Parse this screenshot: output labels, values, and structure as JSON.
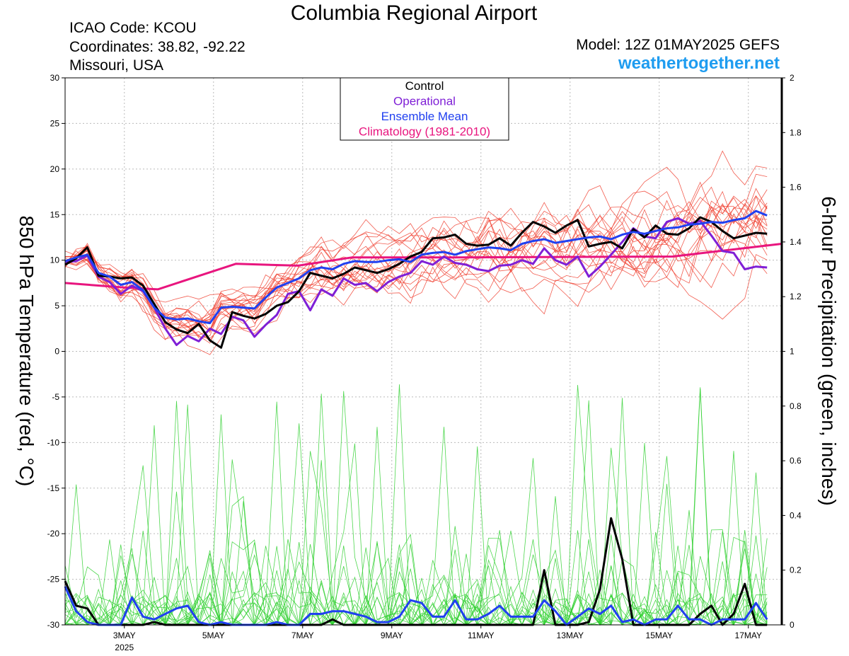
{
  "header": {
    "title": "Columbia Regional Airport",
    "icao": "ICAO Code: KCOU",
    "coordinates": "Coordinates: 38.82, -92.22",
    "region": "Missouri, USA",
    "model": "Model: 12Z 01MAY2025 GEFS",
    "site": "weathertogether.net"
  },
  "colors": {
    "control": "#000000",
    "operational": "#7f1fd6",
    "ensemble_mean": "#2040f0",
    "climatology": "#e8157e",
    "members_temp": "#f04030",
    "members_precip": "#30d030",
    "site": "#1e9cf0"
  },
  "chart_data": {
    "type": "line",
    "xlabel": "",
    "ylabel": "850 hPa Temperature (red, °C)",
    "y2label": "6-hour Precipitation (green, inches)",
    "x_unit": "days since 01MAY2025 12Z",
    "xlim": [
      0.17,
      16.25
    ],
    "ylim": [
      -30,
      30
    ],
    "y2lim": [
      0,
      2
    ],
    "x_ticks": [
      {
        "x": 1.5,
        "label": "3MAY",
        "sub": "2025"
      },
      {
        "x": 3.5,
        "label": "5MAY",
        "sub": ""
      },
      {
        "x": 5.5,
        "label": "7MAY",
        "sub": ""
      },
      {
        "x": 7.5,
        "label": "9MAY",
        "sub": ""
      },
      {
        "x": 9.5,
        "label": "11MAY",
        "sub": ""
      },
      {
        "x": 11.5,
        "label": "13MAY",
        "sub": ""
      },
      {
        "x": 13.5,
        "label": "15MAY",
        "sub": ""
      },
      {
        "x": 15.5,
        "label": "17MAY",
        "sub": ""
      }
    ],
    "y_ticks": [
      30,
      25,
      20,
      15,
      10,
      5,
      0,
      -5,
      -10,
      -15,
      -20,
      -25,
      -30
    ],
    "y2_ticks": [
      "2",
      "1.8",
      "1.6",
      "1.4",
      "1.2",
      "1",
      "0.8",
      "0.6",
      "0.4",
      "0.2",
      "0"
    ],
    "legend": {
      "position": "top-center",
      "entries": [
        "Control",
        "Operational",
        "Ensemble Mean",
        "Climatology (1981-2010)"
      ]
    },
    "grid": true,
    "temperature_series": [
      {
        "name": "Control",
        "role": "control",
        "values": [
          9.5,
          10.2,
          11.4,
          8.3,
          8.2,
          8.0,
          8.1,
          7.2,
          5.2,
          3.2,
          2.4,
          2.0,
          3.0,
          1.2,
          0.4,
          4.3,
          3.9,
          3.6,
          4.1,
          5.0,
          5.4,
          6.6,
          8.6,
          8.3,
          8.0,
          8.5,
          9.2,
          8.9,
          8.6,
          9.0,
          9.6,
          10.4,
          10.9,
          12.4,
          12.5,
          12.8,
          11.8,
          11.6,
          11.7,
          12.4,
          11.6,
          13.0,
          14.2,
          13.7,
          13.0,
          13.8,
          14.4,
          11.5,
          11.8,
          12.0,
          11.3,
          13.4,
          12.5,
          13.8,
          12.9,
          12.8,
          13.5,
          14.7,
          14.2,
          13.2,
          12.4,
          12.7,
          13.0,
          12.9
        ]
      },
      {
        "name": "Operational",
        "role": "operational",
        "values": [
          9.8,
          9.9,
          10.5,
          8.2,
          7.6,
          6.3,
          7.2,
          6.6,
          4.8,
          2.5,
          0.7,
          1.7,
          1.1,
          2.5,
          1.9,
          3.8,
          3.4,
          1.6,
          2.9,
          4.0,
          6.3,
          6.6,
          4.5,
          6.8,
          6.1,
          8.0,
          7.3,
          7.5,
          6.6,
          7.6,
          8.2,
          8.6,
          9.9,
          9.5,
          10.4,
          9.7,
          9.5,
          9.0,
          8.8,
          9.4,
          9.5,
          10.0,
          9.6,
          11.3,
          10.0,
          9.5,
          10.4,
          8.2,
          9.3,
          10.6,
          12.0,
          13.5,
          12.6,
          12.4,
          14.2,
          14.6,
          14.0,
          14.3,
          12.7,
          11.0,
          10.8,
          9.0,
          9.3,
          9.2
        ]
      },
      {
        "name": "Ensemble Mean",
        "role": "ensemble_mean",
        "values": [
          9.9,
          10.3,
          10.6,
          8.6,
          8.2,
          7.3,
          7.6,
          6.7,
          4.8,
          3.7,
          3.5,
          3.6,
          3.3,
          3.1,
          4.8,
          4.9,
          4.8,
          4.7,
          5.9,
          7.0,
          7.5,
          8.0,
          8.9,
          9.2,
          9.0,
          9.6,
          9.9,
          9.8,
          9.8,
          10.0,
          10.1,
          9.8,
          10.6,
          10.8,
          10.9,
          10.6,
          11.0,
          11.2,
          11.4,
          11.3,
          11.1,
          11.8,
          12.1,
          12.3,
          11.9,
          12.1,
          12.3,
          12.5,
          12.6,
          12.3,
          12.8,
          13.1,
          12.9,
          13.2,
          13.5,
          13.6,
          13.9,
          14.0,
          14.2,
          14.1,
          14.4,
          14.6,
          15.4,
          14.9
        ]
      },
      {
        "name": "Climatology (1981-2010)",
        "role": "climatology",
        "x": [
          0.17,
          1.5,
          2.25,
          4.0,
          5.4,
          6.6,
          9.0,
          13.8,
          16.25
        ],
        "values": [
          7.5,
          7.0,
          6.8,
          9.6,
          9.4,
          10.3,
          10.3,
          10.4,
          11.8
        ]
      }
    ],
    "precipitation_series": [
      {
        "name": "Control",
        "role": "control",
        "values": [
          0.16,
          0.07,
          0.06,
          0.0,
          0.0,
          0.0,
          0.0,
          0.0,
          0.01,
          0.0,
          0.0,
          0.0,
          0.0,
          0.0,
          0.0,
          0.0,
          0.0,
          0.0,
          0.0,
          0.0,
          0.0,
          0.0,
          0.0,
          0.0,
          0.02,
          0.0,
          0.0,
          0.0,
          0.0,
          0.0,
          0.0,
          0.0,
          0.0,
          0.0,
          0.0,
          0.0,
          0.0,
          0.0,
          0.0,
          0.0,
          0.0,
          0.0,
          0.0,
          0.2,
          0.0,
          0.0,
          0.0,
          0.01,
          0.13,
          0.39,
          0.24,
          0.0,
          0.0,
          0.0,
          0.0,
          0.0,
          0.0,
          0.04,
          0.07,
          0.0,
          0.04,
          0.15,
          0.0,
          0.0
        ]
      },
      {
        "name": "Ensemble Mean",
        "role": "ensemble_mean",
        "values": [
          0.14,
          0.05,
          0.01,
          0.0,
          0.0,
          0.0,
          0.1,
          0.03,
          0.02,
          0.04,
          0.06,
          0.07,
          0.01,
          0.0,
          0.01,
          0.0,
          0.0,
          0.0,
          0.0,
          0.01,
          0.0,
          0.0,
          0.04,
          0.04,
          0.05,
          0.05,
          0.04,
          0.03,
          0.01,
          0.01,
          0.03,
          0.09,
          0.08,
          0.03,
          0.03,
          0.09,
          0.02,
          0.02,
          0.04,
          0.07,
          0.03,
          0.03,
          0.03,
          0.09,
          0.05,
          0.0,
          0.03,
          0.06,
          0.04,
          0.07,
          0.01,
          0.02,
          0.0,
          0.02,
          0.02,
          0.07,
          0.02,
          0.02,
          0.0,
          0.02,
          0.02,
          0.02,
          0.08,
          0.02
        ]
      }
    ]
  }
}
